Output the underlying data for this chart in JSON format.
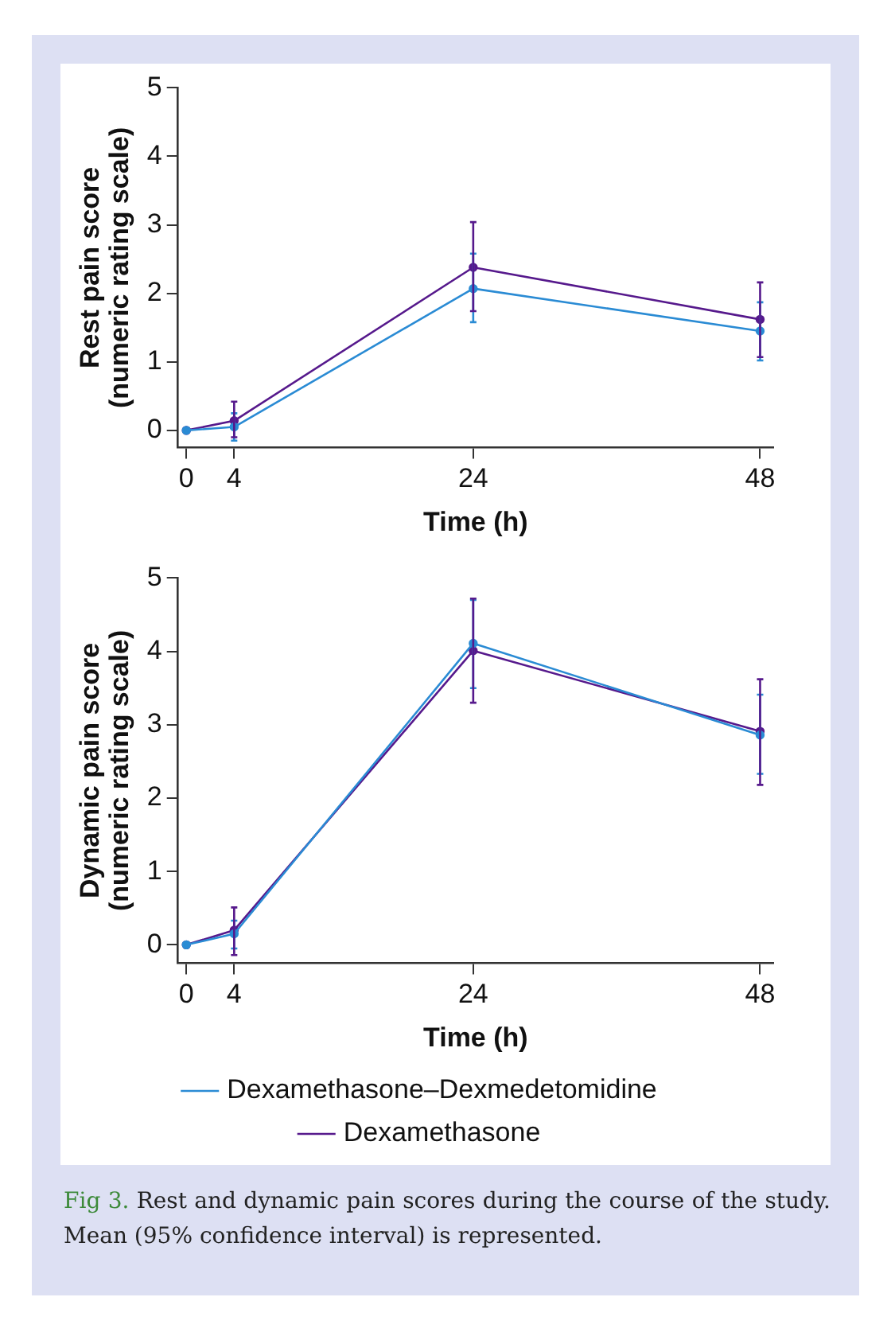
{
  "chart_data": [
    {
      "type": "line",
      "xlabel": "Time (h)",
      "ylabel": "Rest pain score\n(numeric rating scale)",
      "x": [
        0,
        4,
        24,
        48
      ],
      "xlim": [
        -0.7,
        49.1
      ],
      "xticks": [
        0,
        4,
        24,
        48
      ],
      "ylim": [
        -0.25,
        5
      ],
      "yticks": [
        0,
        1,
        2,
        3,
        4,
        5
      ],
      "grid": false,
      "legend": false,
      "marker": "circle",
      "line_style": "solid",
      "series": [
        {
          "color": "#2a8bd4",
          "values": [
            0,
            0.05,
            2.07,
            1.45
          ],
          "errors": [
            null,
            [
              -0.15,
              0.25
            ],
            [
              1.58,
              2.58
            ],
            [
              1.02,
              1.87
            ]
          ]
        },
        {
          "color": "#56198c",
          "values": [
            0,
            0.14,
            2.38,
            1.62
          ],
          "errors": [
            null,
            [
              -0.1,
              0.42
            ],
            [
              1.74,
              3.04
            ],
            [
              1.07,
              2.16
            ]
          ]
        }
      ]
    },
    {
      "type": "line",
      "xlabel": "Time (h)",
      "ylabel": "Dynamic pain score\n(numeric rating scale)",
      "x": [
        0,
        4,
        24,
        48
      ],
      "xlim": [
        -0.7,
        49.1
      ],
      "xticks": [
        0,
        4,
        24,
        48
      ],
      "ylim": [
        -0.25,
        5
      ],
      "yticks": [
        0,
        1,
        2,
        3,
        4,
        5
      ],
      "grid": false,
      "legend": "bottom",
      "marker": "circle",
      "line_style": "solid",
      "series": [
        {
          "name": "Dexamethasone–Dexmedetomidine",
          "color": "#2a8bd4",
          "values": [
            0,
            0.15,
            4.11,
            2.86
          ],
          "errors": [
            null,
            [
              -0.05,
              0.33
            ],
            [
              3.5,
              4.7
            ],
            [
              2.33,
              3.41
            ]
          ]
        },
        {
          "name": "Dexamethasone",
          "color": "#56198c",
          "values": [
            0,
            0.2,
            4.01,
            2.91
          ],
          "errors": [
            null,
            [
              -0.14,
              0.51
            ],
            [
              3.3,
              4.72
            ],
            [
              2.18,
              3.62
            ]
          ]
        }
      ],
      "annotations": [
        "Fig 3.",
        "Rest and dynamic pain scores during the course of the study. Mean (95% confidence interval) is represented."
      ]
    }
  ]
}
